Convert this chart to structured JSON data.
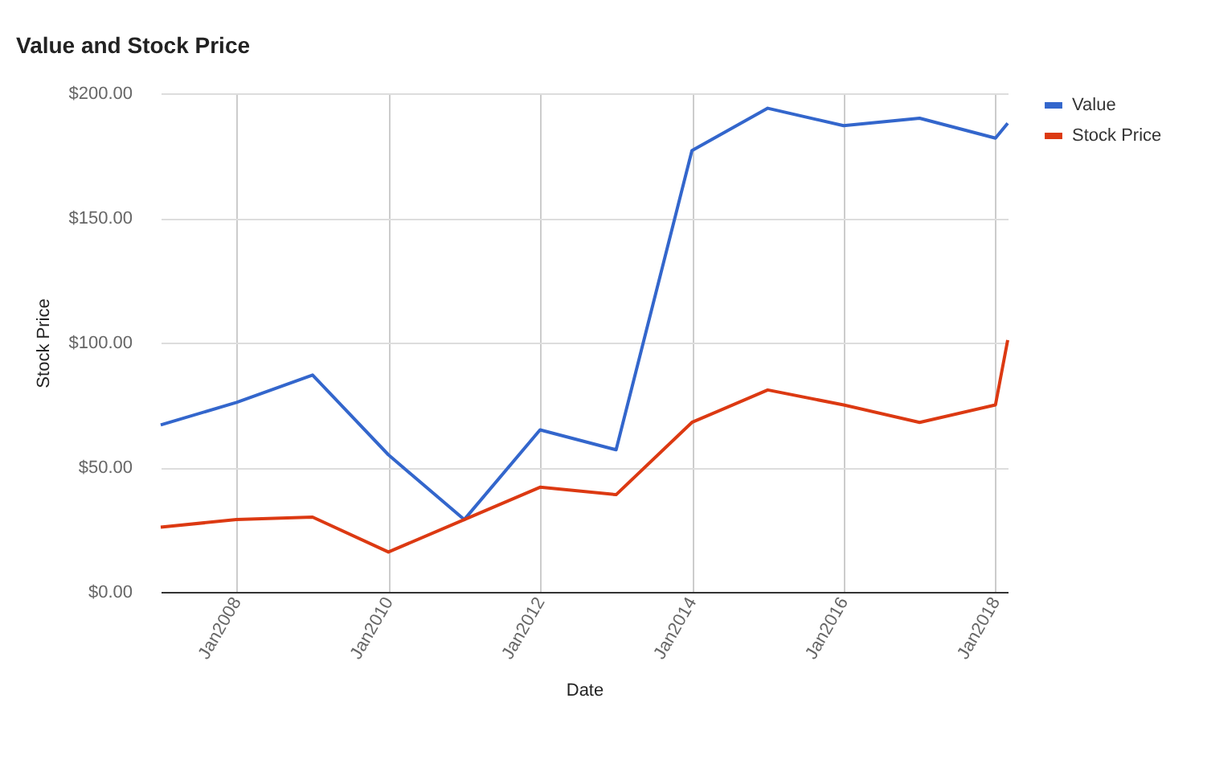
{
  "chart_data": {
    "type": "line",
    "title": "Value and Stock Price",
    "xlabel": "Date",
    "ylabel": "Stock Price",
    "x": [
      "2007-01",
      "2008-01",
      "2009-01",
      "2010-01",
      "2011-01",
      "2012-01",
      "2013-01",
      "2014-01",
      "2015-01",
      "2016-01",
      "2017-01",
      "2018-01",
      "2018-03"
    ],
    "series": [
      {
        "name": "Value",
        "color": "#3366cc",
        "values": [
          67,
          76,
          87,
          55,
          29,
          65,
          57,
          177,
          194,
          187,
          190,
          182,
          188
        ]
      },
      {
        "name": "Stock Price",
        "color": "#dc3912",
        "values": [
          26,
          29,
          30,
          16,
          29,
          42,
          39,
          68,
          81,
          75,
          68,
          75,
          101
        ]
      }
    ],
    "xlim": [
      "2007-01",
      "2018-03"
    ],
    "xticks": [
      {
        "value": "2008-01",
        "label": "Jan2008"
      },
      {
        "value": "2010-01",
        "label": "Jan2010"
      },
      {
        "value": "2012-01",
        "label": "Jan2012"
      },
      {
        "value": "2014-01",
        "label": "Jan2014"
      },
      {
        "value": "2016-01",
        "label": "Jan2016"
      },
      {
        "value": "2018-01",
        "label": "Jan2018"
      }
    ],
    "ylim": [
      0,
      200
    ],
    "yticks": [
      {
        "value": 0,
        "label": "$0.00"
      },
      {
        "value": 50,
        "label": "$50.00"
      },
      {
        "value": 100,
        "label": "$100.00"
      },
      {
        "value": 150,
        "label": "$150.00"
      },
      {
        "value": 200,
        "label": "$200.00"
      }
    ],
    "grid": true,
    "legend": "top right"
  }
}
